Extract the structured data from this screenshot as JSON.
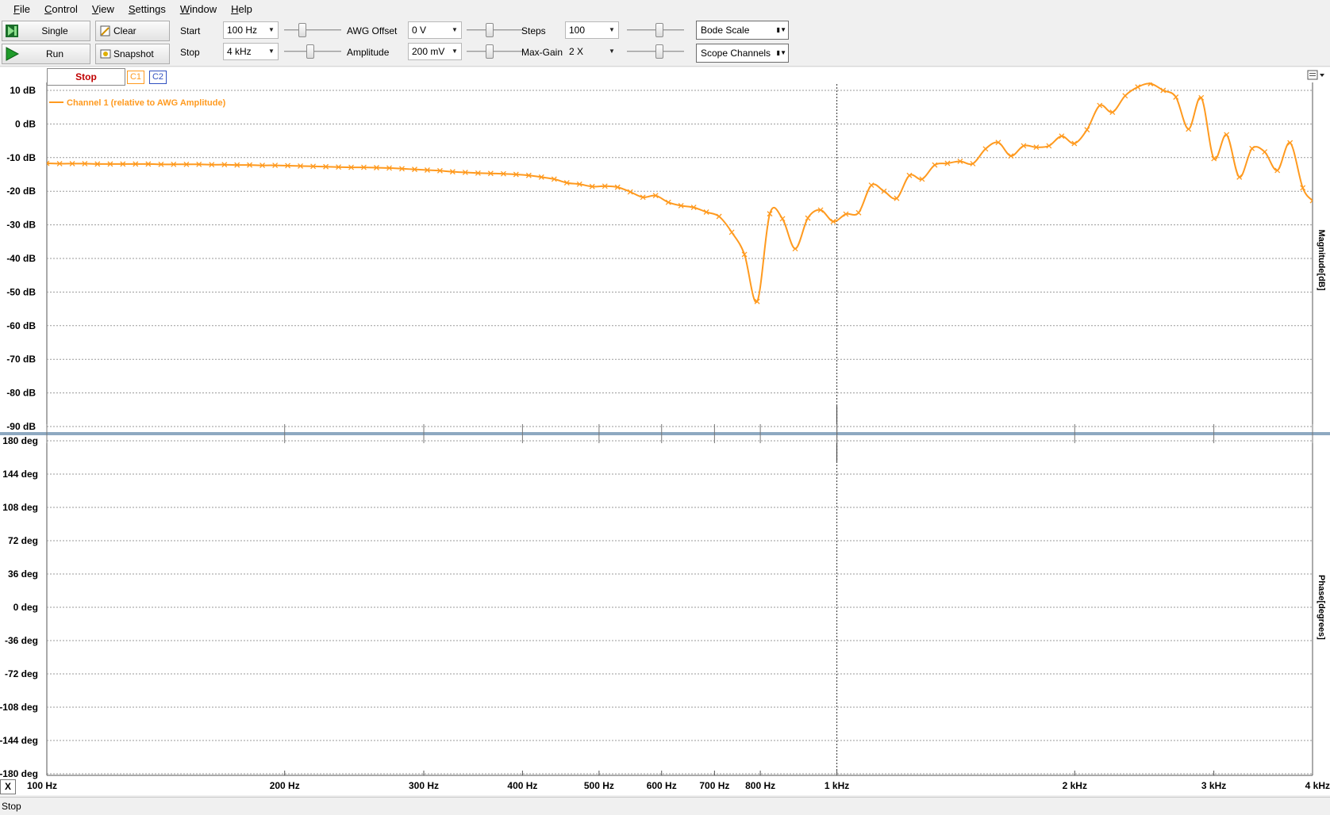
{
  "menu": [
    "File",
    "Control",
    "View",
    "Settings",
    "Window",
    "Help"
  ],
  "toolbar": {
    "single_label": "Single",
    "run_label": "Run",
    "clear_label": "Clear",
    "snapshot_label": "Snapshot",
    "start_label": "Start",
    "start_value": "100 Hz",
    "stop_label": "Stop",
    "stop_value": "4 kHz",
    "awg_offset_label": "AWG Offset",
    "awg_offset_value": "0 V",
    "amplitude_label": "Amplitude",
    "amplitude_value": "200 mV",
    "steps_label": "Steps",
    "steps_value": "100",
    "max_gain_label": "Max-Gain",
    "max_gain_value": "2 X",
    "bode_scale_label": "Bode Scale",
    "scope_channels_label": "Scope Channels"
  },
  "plot_controls": {
    "stop_tab": "Stop",
    "c1_label": "C1",
    "c2_label": "C2",
    "close_x": "X"
  },
  "colors": {
    "channel1": "#ff9a1f",
    "stop_text": "#c00000",
    "c1_border": "#ff9a1f",
    "c2_border": "#3050c0",
    "grid": "#9a9a9a",
    "divider": "#8ea9c1"
  },
  "status_text": "Stop",
  "chart_data": [
    {
      "type": "line",
      "title": "",
      "legend": [
        "Channel 1 (relative to AWG Amplitude)"
      ],
      "legend_position": "top-left",
      "xscale": "log",
      "xlim": [
        100,
        4000
      ],
      "ylim": [
        -90,
        10
      ],
      "ylabel": "Magnitude[dB]",
      "y_ticks": [
        10,
        0,
        -10,
        -20,
        -30,
        -40,
        -50,
        -60,
        -70,
        -80,
        -90
      ],
      "y_tick_labels": [
        "10 dB",
        "0 dB",
        "-10 dB",
        "-20 dB",
        "-30 dB",
        "-40 dB",
        "-50 dB",
        "-60 dB",
        "-70 dB",
        "-80 dB",
        "-90 dB"
      ],
      "grid": true,
      "series": [
        {
          "name": "Channel 1 (relative to AWG Amplitude)",
          "x": [
            100,
            103.8,
            107.7,
            111.7,
            115.9,
            120.3,
            124.8,
            129.5,
            134.4,
            139.5,
            144.7,
            150.2,
            155.8,
            161.7,
            167.8,
            174.1,
            180.6,
            187.4,
            194.5,
            201.8,
            209.4,
            217.3,
            225.5,
            234,
            242.8,
            251.9,
            261.4,
            271.3,
            281.5,
            292.1,
            303.1,
            314.5,
            326.3,
            338.6,
            351.4,
            364.6,
            378.4,
            392.6,
            407.4,
            422.7,
            438.7,
            455.2,
            472.3,
            490.1,
            508.6,
            527.7,
            547.6,
            568.2,
            589.6,
            611.9,
            634.9,
            658.8,
            683.6,
            709.4,
            736.1,
            763.8,
            792.6,
            822.4,
            853.4,
            885.6,
            918.9,
            953.5,
            989.5,
            1026.7,
            1065.4,
            1105.6,
            1147.2,
            1190.4,
            1235.3,
            1281.8,
            1330.1,
            1380.2,
            1432.2,
            1486.2,
            1542.2,
            1600.3,
            1660.6,
            1723.1,
            1788,
            1855.4,
            1925.3,
            1997.9,
            2073.1,
            2151.2,
            2232.3,
            2316.4,
            2403.6,
            2494.2,
            2588.2,
            2685.7,
            2786.8,
            2891.8,
            3000.8,
            3113.8,
            3231.2,
            3352.9,
            3479.2,
            3610.3,
            3746.3,
            3887.5,
            4000
          ],
          "y": [
            -11.7,
            -11.8,
            -11.8,
            -11.8,
            -11.9,
            -11.9,
            -11.9,
            -11.9,
            -11.9,
            -12,
            -12,
            -12,
            -12,
            -12.1,
            -12.1,
            -12.2,
            -12.2,
            -12.3,
            -12.3,
            -12.4,
            -12.5,
            -12.6,
            -12.7,
            -12.8,
            -12.9,
            -12.9,
            -13,
            -13.1,
            -13.3,
            -13.5,
            -13.7,
            -13.9,
            -14.2,
            -14.4,
            -14.6,
            -14.7,
            -14.8,
            -15,
            -15.3,
            -15.8,
            -16.4,
            -17.5,
            -17.9,
            -18.6,
            -18.5,
            -18.8,
            -20.2,
            -21.8,
            -21.3,
            -23.3,
            -24.3,
            -24.8,
            -26.2,
            -27.5,
            -32.2,
            -38.8,
            -52.8,
            -26.7,
            -28.2,
            -37.1,
            -28,
            -25.6,
            -29,
            -26.8,
            -26.4,
            -18.2,
            -20,
            -22.1,
            -15.3,
            -16.4,
            -12.2,
            -11.7,
            -11.1,
            -11.8,
            -7.4,
            -5.5,
            -9.5,
            -6.5,
            -6.9,
            -6.5,
            -3.6,
            -5.8,
            -1.7,
            5.5,
            3.5,
            8.4,
            11,
            12,
            10,
            8,
            -1.5,
            7.8,
            -10.3,
            -3.2,
            -15.8,
            -7.3,
            -8.3,
            -13.8,
            -5.6,
            -19,
            -22.8
          ]
        }
      ]
    },
    {
      "type": "line",
      "title": "",
      "xscale": "log",
      "xlim": [
        100,
        4000
      ],
      "ylim": [
        -180,
        180
      ],
      "ylabel": "Phase[degrees]",
      "y_ticks": [
        180,
        144,
        108,
        72,
        36,
        0,
        -36,
        -72,
        -108,
        -144,
        -180
      ],
      "y_tick_labels": [
        "180 deg",
        "144 deg",
        "108 deg",
        "72 deg",
        "36 deg",
        "0 deg",
        "-36 deg",
        "-72 deg",
        "-108 deg",
        "-144 deg",
        "-180 deg"
      ],
      "x_ticks": [
        100,
        200,
        300,
        400,
        500,
        600,
        700,
        800,
        1000,
        2000,
        3000,
        4000
      ],
      "x_tick_labels": [
        "100 Hz",
        "200 Hz",
        "300 Hz",
        "400 Hz",
        "500 Hz",
        "600 Hz",
        "700 Hz",
        "800 Hz",
        "1 kHz",
        "2 kHz",
        "3 kHz",
        "4 kHz"
      ],
      "grid": true,
      "series": []
    }
  ]
}
